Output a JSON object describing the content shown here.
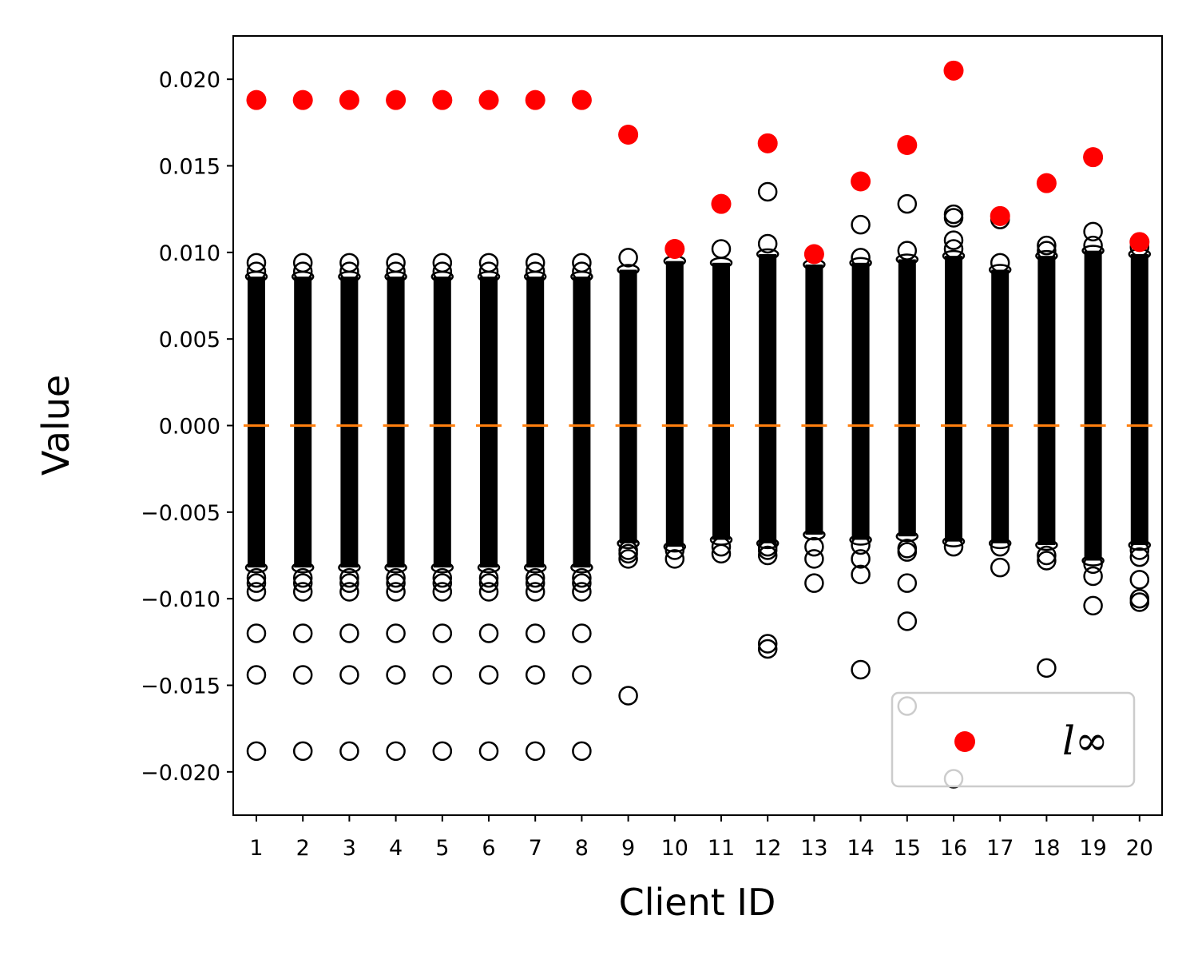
{
  "chart_data": {
    "type": "scatter",
    "xlabel": "Client ID",
    "ylabel": "Value",
    "categories": [
      "1",
      "2",
      "3",
      "4",
      "5",
      "6",
      "7",
      "8",
      "9",
      "10",
      "11",
      "12",
      "13",
      "14",
      "15",
      "16",
      "17",
      "18",
      "19",
      "20"
    ],
    "ylim": [
      -0.0225,
      0.0225
    ],
    "yticks": [
      0.02,
      0.015,
      0.01,
      0.005,
      0.0,
      -0.005,
      -0.01,
      -0.015,
      -0.02
    ],
    "ytick_labels": [
      "0.020",
      "0.015",
      "0.010",
      "0.005",
      "0.000",
      "−0.005",
      "−0.010",
      "−0.015",
      "−0.020"
    ],
    "grid": false,
    "legend": {
      "position": "bottom-right",
      "entries": [
        {
          "label": "l∞",
          "marker": "filled-circle",
          "color": "#ff0000"
        }
      ]
    },
    "colors": {
      "outlier_edge": "#000000",
      "linf": "#ff0000",
      "median": "#ff7f0e"
    },
    "series": [
      {
        "name": "l∞",
        "kind": "points",
        "values": [
          0.0188,
          0.0188,
          0.0188,
          0.0188,
          0.0188,
          0.0188,
          0.0188,
          0.0188,
          0.0168,
          0.0102,
          0.0128,
          0.0163,
          0.0099,
          0.0141,
          0.0162,
          0.0205,
          0.0121,
          0.014,
          0.0155,
          0.0106
        ]
      }
    ],
    "medians": [
      0,
      0,
      0,
      0,
      0,
      0,
      0,
      0,
      0,
      0,
      0,
      0,
      0,
      0,
      0,
      0,
      0,
      0,
      0,
      0
    ],
    "box_ranges": [
      [
        -0.0082,
        0.0086
      ],
      [
        -0.0082,
        0.0086
      ],
      [
        -0.0082,
        0.0086
      ],
      [
        -0.0082,
        0.0086
      ],
      [
        -0.0082,
        0.0086
      ],
      [
        -0.0082,
        0.0086
      ],
      [
        -0.0082,
        0.0086
      ],
      [
        -0.0082,
        0.0086
      ],
      [
        -0.0068,
        0.009
      ],
      [
        -0.007,
        0.0095
      ],
      [
        -0.0066,
        0.0094
      ],
      [
        -0.0068,
        0.0099
      ],
      [
        -0.0063,
        0.0093
      ],
      [
        -0.0066,
        0.0094
      ],
      [
        -0.0064,
        0.0096
      ],
      [
        -0.0067,
        0.0098
      ],
      [
        -0.0068,
        0.009
      ],
      [
        -0.0069,
        0.0098
      ],
      [
        -0.0078,
        0.0101
      ],
      [
        -0.0069,
        0.0099
      ]
    ],
    "outliers": [
      [
        0.0094,
        0.0089,
        -0.0088,
        -0.0091,
        -0.0096,
        -0.012,
        -0.0144,
        -0.0188
      ],
      [
        0.0094,
        0.0089,
        -0.0088,
        -0.0091,
        -0.0096,
        -0.012,
        -0.0144,
        -0.0188
      ],
      [
        0.0094,
        0.0089,
        -0.0088,
        -0.0091,
        -0.0096,
        -0.012,
        -0.0144,
        -0.0188
      ],
      [
        0.0094,
        0.0089,
        -0.0088,
        -0.0091,
        -0.0096,
        -0.012,
        -0.0144,
        -0.0188
      ],
      [
        0.0094,
        0.0089,
        -0.0088,
        -0.0091,
        -0.0096,
        -0.012,
        -0.0144,
        -0.0188
      ],
      [
        0.0094,
        0.0089,
        -0.0088,
        -0.0091,
        -0.0096,
        -0.012,
        -0.0144,
        -0.0188
      ],
      [
        0.0094,
        0.0089,
        -0.0088,
        -0.0091,
        -0.0096,
        -0.012,
        -0.0144,
        -0.0188
      ],
      [
        0.0094,
        0.0089,
        -0.0088,
        -0.0091,
        -0.0096,
        -0.012,
        -0.0144,
        -0.0188
      ],
      [
        0.0168,
        0.0097,
        -0.0072,
        -0.0074,
        -0.0077,
        -0.0156
      ],
      [
        0.0102,
        -0.0072,
        -0.0077
      ],
      [
        0.0128,
        0.0102,
        -0.007,
        -0.0074
      ],
      [
        0.0163,
        0.0135,
        0.0105,
        -0.007,
        -0.0072,
        -0.0075,
        -0.0126,
        -0.0129
      ],
      [
        0.0099,
        -0.007,
        -0.0077,
        -0.0091
      ],
      [
        0.0116,
        0.0097,
        -0.0069,
        -0.0077,
        -0.0086,
        -0.0141
      ],
      [
        0.0128,
        0.0101,
        -0.0071,
        -0.0073,
        -0.0091,
        -0.0113,
        -0.0162
      ],
      [
        0.0122,
        0.012,
        0.0107,
        0.0102,
        -0.007,
        -0.0204
      ],
      [
        0.0121,
        0.0119,
        0.0094,
        -0.007,
        -0.0082
      ],
      [
        0.0104,
        0.0101,
        -0.0075,
        -0.0078,
        -0.014
      ],
      [
        0.0155,
        0.0112,
        0.0104,
        -0.008,
        -0.0087,
        -0.0104
      ],
      [
        0.0106,
        0.0103,
        -0.0072,
        -0.0076,
        -0.0089,
        -0.01,
        -0.0102
      ]
    ]
  }
}
